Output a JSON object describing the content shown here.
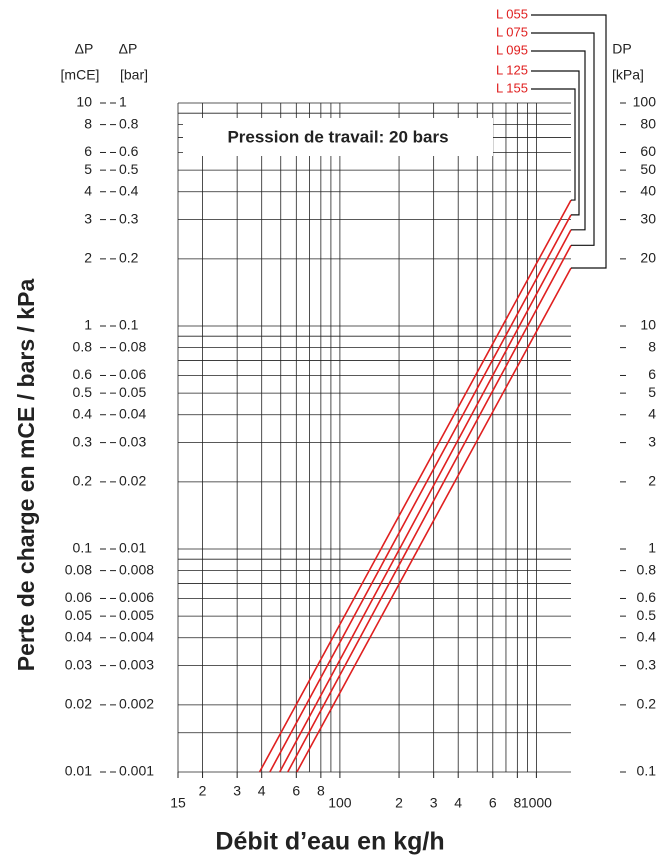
{
  "chart_data": {
    "type": "line",
    "annotation": "Pression de travail: 20 bars",
    "xlabel": "Débit d’eau en kg/h",
    "ylabel": "Perte de charge en mCE / bars / kPa",
    "y_header": "ΔP",
    "y_unit": "[mCE]",
    "ybar_header": "ΔP",
    "ybar_unit": "[bar]",
    "ykpa_header": "DP",
    "ykpa_unit": "[kPa]",
    "log_x": true,
    "log_y": true,
    "grid": true,
    "xlim": [
      15,
      1500
    ],
    "xticks": [
      15,
      {
        "value": 20,
        "label": "2"
      },
      {
        "value": 30,
        "label": "3"
      },
      {
        "value": 40,
        "label": "4"
      },
      {
        "value": 60,
        "label": "6"
      },
      {
        "value": 80,
        "label": "8"
      },
      100,
      {
        "value": 200,
        "label": "2"
      },
      {
        "value": 300,
        "label": "3"
      },
      {
        "value": 400,
        "label": "4"
      },
      {
        "value": 600,
        "label": "6"
      },
      {
        "value": 800,
        "label": "8"
      },
      1000
    ],
    "xminor": [
      50,
      70,
      90,
      500,
      700,
      900
    ],
    "ylim": [
      0.01,
      10
    ],
    "yticks": [
      10,
      8,
      6,
      5,
      4,
      3,
      2,
      1,
      0.8,
      0.6,
      0.5,
      0.4,
      0.3,
      0.2,
      0.1,
      0.08,
      0.06,
      0.05,
      0.04,
      0.03,
      0.02,
      0.01
    ],
    "yminor": [
      9,
      7,
      0.9,
      0.7,
      0.09,
      0.07,
      0.015
    ],
    "ybar_lim": [
      0.001,
      1
    ],
    "ybar_ticks": [
      1,
      0.8,
      0.6,
      0.5,
      0.4,
      0.3,
      0.2,
      0.1,
      0.08,
      0.06,
      0.05,
      0.04,
      0.03,
      0.02,
      0.01,
      0.008,
      0.006,
      0.005,
      0.004,
      0.003,
      0.002,
      0.001
    ],
    "ykpa_lim": [
      0.1,
      100
    ],
    "ykpa_ticks": [
      100,
      80,
      60,
      50,
      40,
      30,
      20,
      10,
      8,
      6,
      5,
      4,
      3,
      2,
      1,
      0.8,
      0.6,
      0.5,
      0.4,
      0.3,
      0.2,
      0.1
    ],
    "series": [
      {
        "name": "L 055",
        "color": "#e02020",
        "x": [
          60.4,
          1500
        ],
        "values": [
          0.01,
          1.82
        ]
      },
      {
        "name": "L 075",
        "color": "#e02020",
        "x": [
          54.3,
          1500
        ],
        "values": [
          0.01,
          2.3
        ]
      },
      {
        "name": "L 095",
        "color": "#e02020",
        "x": [
          49.4,
          1500
        ],
        "values": [
          0.01,
          2.7
        ]
      },
      {
        "name": "L 125",
        "color": "#e02020",
        "x": [
          44,
          1500
        ],
        "values": [
          0.01,
          3.15
        ]
      },
      {
        "name": "L 155",
        "color": "#e02020",
        "x": [
          39,
          1500
        ],
        "values": [
          0.01,
          3.67
        ]
      }
    ]
  }
}
